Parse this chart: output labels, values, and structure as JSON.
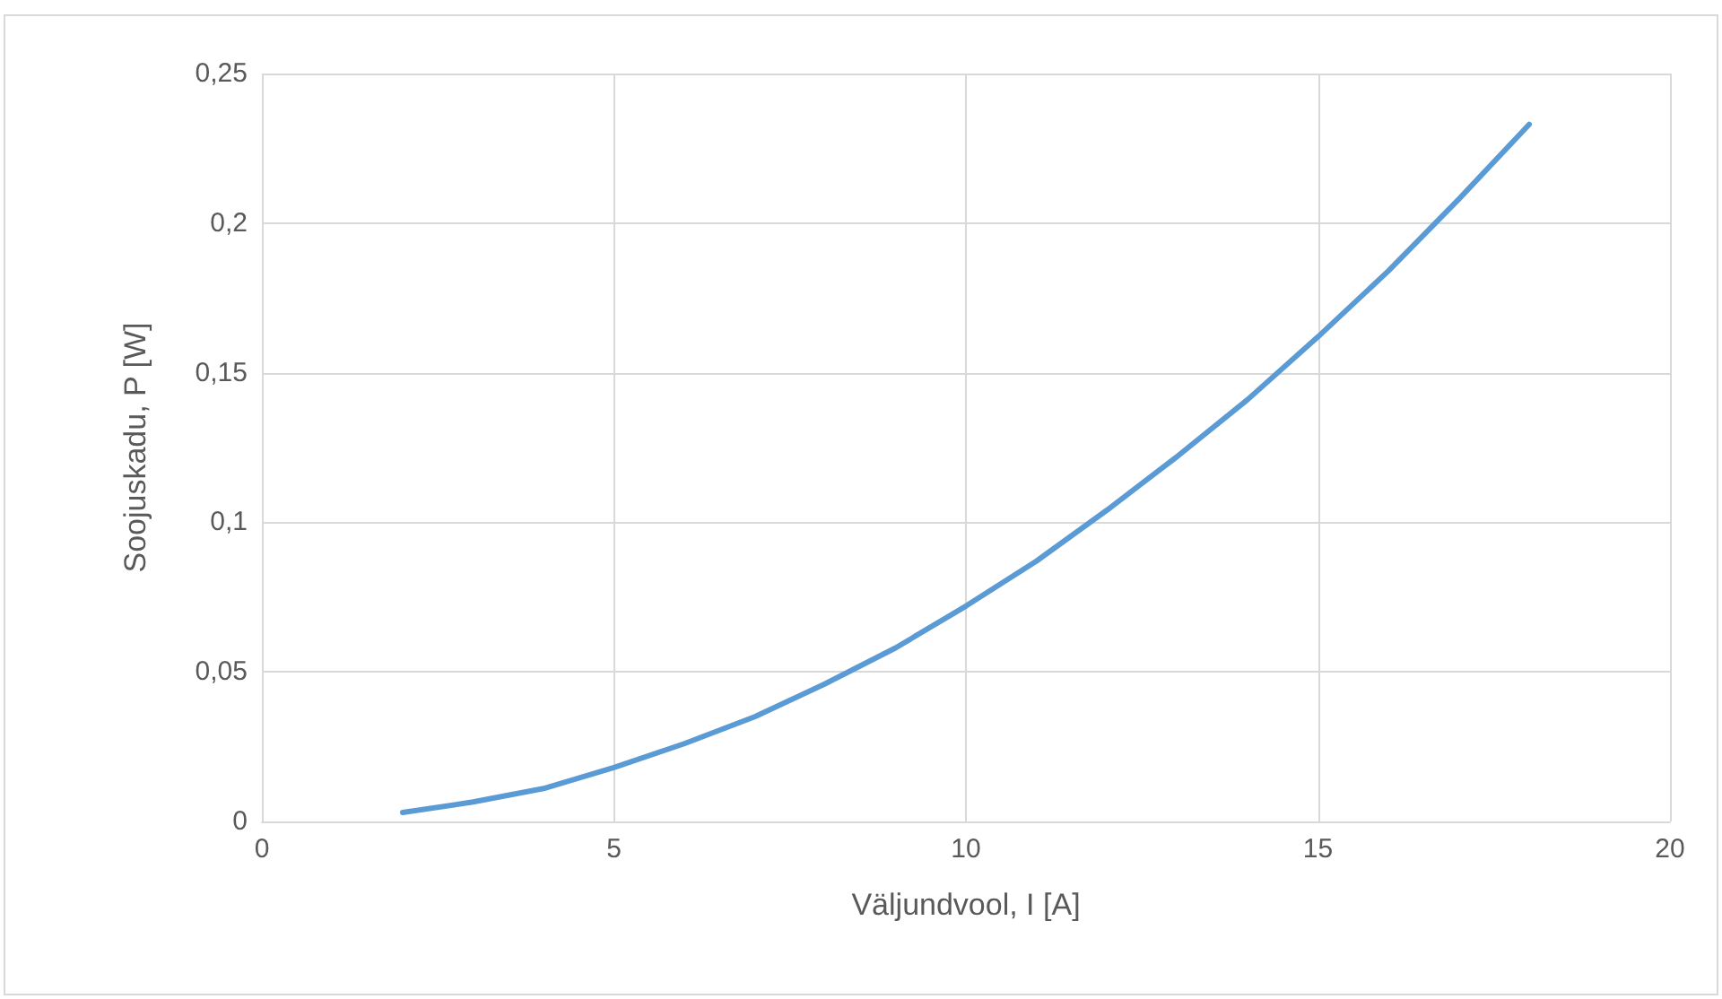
{
  "chart_data": {
    "type": "line",
    "xlabel": "Väljundvool, I [A]",
    "ylabel": "Soojuskadu, P [W]",
    "x": [
      2,
      3,
      4,
      5,
      6,
      7,
      8,
      9,
      10,
      11,
      12,
      13,
      14,
      15,
      16,
      17,
      18
    ],
    "series": [
      {
        "color": "#5b9bd5",
        "values": [
          0.003,
          0.0065,
          0.011,
          0.018,
          0.026,
          0.035,
          0.046,
          0.058,
          0.072,
          0.087,
          0.104,
          0.122,
          0.141,
          0.162,
          0.184,
          0.208,
          0.233
        ]
      }
    ],
    "xlim": [
      0,
      20
    ],
    "xticks": [
      0,
      5,
      10,
      15,
      20
    ],
    "ylim": [
      0,
      0.25
    ],
    "yticks": [
      0,
      {
        "value": 0.05,
        "label": "0,05"
      },
      {
        "value": 0.1,
        "label": "0,1"
      },
      {
        "value": 0.15,
        "label": "0,15"
      },
      {
        "value": 0.2,
        "label": "0,2"
      },
      {
        "value": 0.25,
        "label": "0,25"
      }
    ],
    "grid": true,
    "marker": "none",
    "line_style": "solid"
  }
}
